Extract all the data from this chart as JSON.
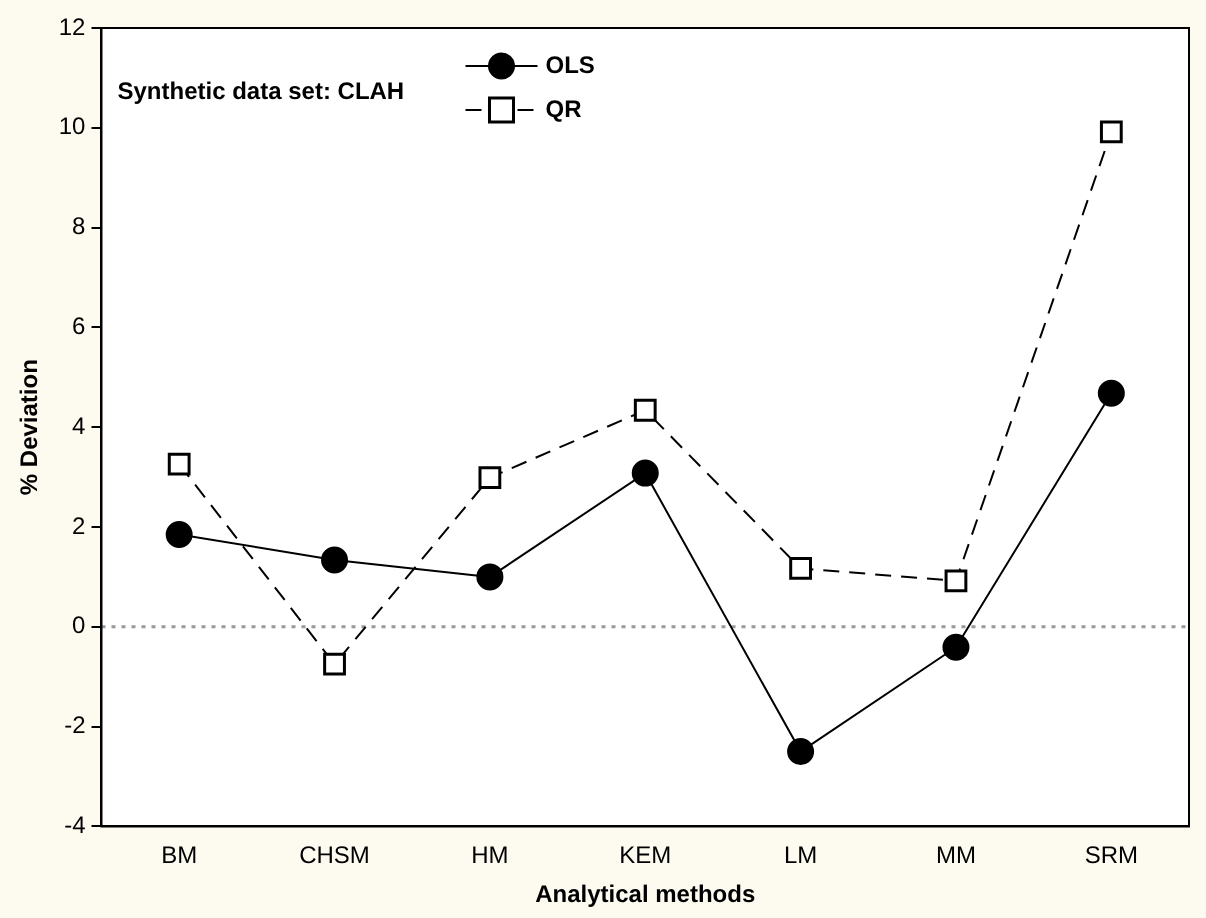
{
  "chart_data": {
    "type": "line",
    "xlabel": "Analytical methods",
    "ylabel": "% Deviation",
    "annotations": [
      "Synthetic data set: CLAH"
    ],
    "categories": [
      "BM",
      "CHSM",
      "HM",
      "KEM",
      "LM",
      "MM",
      "SRM"
    ],
    "series": [
      {
        "name": "OLS",
        "color": "#000000",
        "marker": "circle",
        "line_style": "solid",
        "values": [
          1.85,
          1.34,
          1.0,
          3.08,
          -2.5,
          -0.41,
          4.68
        ]
      },
      {
        "name": "QR",
        "color": "#000000",
        "marker": "square",
        "line_style": "dashed",
        "values": [
          3.26,
          -0.75,
          2.99,
          4.34,
          1.17,
          0.92,
          9.92
        ]
      }
    ],
    "ylim": [
      -4,
      12
    ],
    "yticks": [
      -4,
      -2,
      0,
      2,
      4,
      6,
      8,
      10,
      12
    ],
    "grid": false,
    "legend": "top",
    "ref_lines": [
      {
        "axis": "y",
        "value": 0,
        "color": "#999999",
        "line_style": "dotted"
      }
    ]
  }
}
